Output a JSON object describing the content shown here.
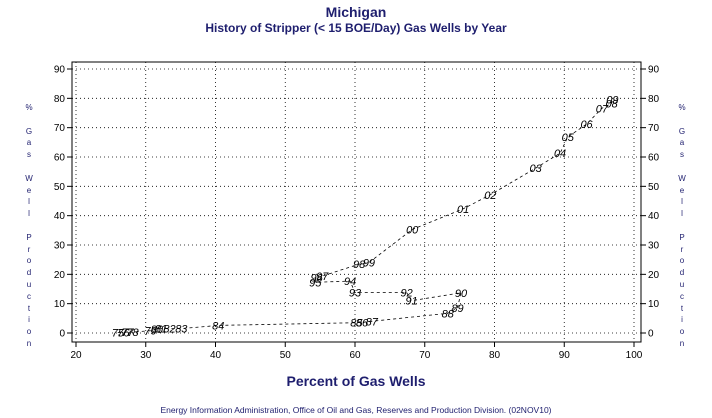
{
  "title": "Michigan",
  "subtitle": "History of Stripper (< 15 BOE/Day) Gas Wells by Year",
  "footer": "Energy Information Administration, Office of Oil and Gas, Reserves and Production Division. (02NOV10)",
  "chart_data": {
    "type": "scatter",
    "title": "Michigan",
    "subtitle": "History of Stripper (< 15 BOE/Day) Gas Wells by Year",
    "xlabel": "Percent of Gas Wells",
    "ylabel": "% Gas Well Production",
    "xlim": [
      20,
      100
    ],
    "ylim": [
      0,
      90
    ],
    "xticks": [
      20,
      30,
      40,
      50,
      60,
      70,
      80,
      90,
      100
    ],
    "yticks": [
      0,
      10,
      20,
      30,
      40,
      50,
      60,
      70,
      80,
      90
    ],
    "grid": true,
    "connected": true,
    "points": [
      {
        "label": "75",
        "x": 26.0,
        "y": 0.2
      },
      {
        "label": "76",
        "x": 26.8,
        "y": 0.2
      },
      {
        "label": "77",
        "x": 27.4,
        "y": 0.3
      },
      {
        "label": "78",
        "x": 28.1,
        "y": 0.3
      },
      {
        "label": "79",
        "x": 30.7,
        "y": 0.8
      },
      {
        "label": "80",
        "x": 31.6,
        "y": 1.3
      },
      {
        "label": "81",
        "x": 32.2,
        "y": 1.5
      },
      {
        "label": "82",
        "x": 33.4,
        "y": 1.5
      },
      {
        "label": "83",
        "x": 35.1,
        "y": 1.5
      },
      {
        "label": "84",
        "x": 40.4,
        "y": 2.6
      },
      {
        "label": "85",
        "x": 60.2,
        "y": 3.5
      },
      {
        "label": "86",
        "x": 61.0,
        "y": 3.6
      },
      {
        "label": "87",
        "x": 62.4,
        "y": 4.0
      },
      {
        "label": "88",
        "x": 73.3,
        "y": 6.7
      },
      {
        "label": "89",
        "x": 74.7,
        "y": 8.6
      },
      {
        "label": "90",
        "x": 75.2,
        "y": 13.7
      },
      {
        "label": "91",
        "x": 68.1,
        "y": 11.0
      },
      {
        "label": "92",
        "x": 67.4,
        "y": 13.8
      },
      {
        "label": "93",
        "x": 60.0,
        "y": 13.8
      },
      {
        "label": "94",
        "x": 59.3,
        "y": 17.7
      },
      {
        "label": "95",
        "x": 54.3,
        "y": 17.3
      },
      {
        "label": "96",
        "x": 54.5,
        "y": 18.9
      },
      {
        "label": "97",
        "x": 55.3,
        "y": 19.4
      },
      {
        "label": "98",
        "x": 60.6,
        "y": 23.5
      },
      {
        "label": "99",
        "x": 62.0,
        "y": 24.0
      },
      {
        "label": "00",
        "x": 68.2,
        "y": 35.3
      },
      {
        "label": "01",
        "x": 75.5,
        "y": 42.3
      },
      {
        "label": "02",
        "x": 79.4,
        "y": 47.1
      },
      {
        "label": "03",
        "x": 85.9,
        "y": 56.2
      },
      {
        "label": "04",
        "x": 89.4,
        "y": 61.3
      },
      {
        "label": "05",
        "x": 90.5,
        "y": 66.8
      },
      {
        "label": "06",
        "x": 93.2,
        "y": 71.2
      },
      {
        "label": "07",
        "x": 95.4,
        "y": 76.6
      },
      {
        "label": "08",
        "x": 96.8,
        "y": 78.3
      },
      {
        "label": "09",
        "x": 96.9,
        "y": 79.6
      }
    ]
  }
}
